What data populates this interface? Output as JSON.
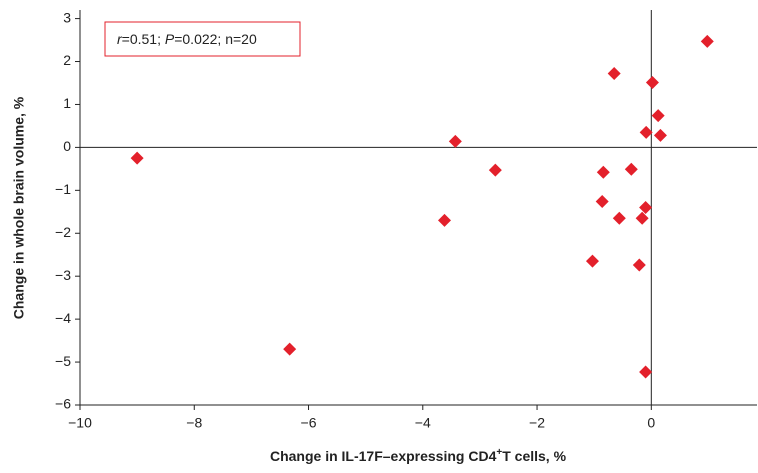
{
  "chart_data": {
    "type": "scatter",
    "annotation": [
      "r",
      "=0.51; ",
      "P",
      "=0.022; n=20"
    ],
    "x_label": [
      "Change in IL-17F–expressing CD4",
      "+",
      "T cells, %"
    ],
    "y_label": "Change in whole brain volume, %",
    "color": "#e3202b",
    "x": [
      -9.0,
      -6.33,
      -3.62,
      -3.43,
      -2.73,
      -1.03,
      -0.84,
      -0.86,
      -0.65,
      -0.56,
      -0.35,
      -0.21,
      -0.16,
      -0.1,
      -0.1,
      -0.09,
      0.02,
      0.12,
      0.16,
      0.98
    ],
    "values": [
      -0.25,
      -4.7,
      -1.7,
      0.14,
      -0.53,
      -2.65,
      -0.58,
      -1.26,
      1.72,
      -1.65,
      -0.51,
      -2.74,
      -1.65,
      -5.23,
      -1.4,
      0.35,
      1.51,
      0.74,
      0.28,
      2.47
    ],
    "xlim": [
      -10,
      1.85
    ],
    "ylim": [
      -6,
      3.2
    ],
    "xticks": [
      {
        "value": -10,
        "label": "−10"
      },
      {
        "value": -8,
        "label": "−8"
      },
      {
        "value": -6,
        "label": "−6"
      },
      {
        "value": -4,
        "label": "−4"
      },
      {
        "value": -2,
        "label": "−2"
      },
      0
    ],
    "yticks": [
      {
        "value": -6,
        "label": "−6"
      },
      {
        "value": -5,
        "label": "−5"
      },
      {
        "value": -4,
        "label": "−4"
      },
      {
        "value": -3,
        "label": "−3"
      },
      {
        "value": -2,
        "label": "−2"
      },
      {
        "value": -1,
        "label": "−1"
      },
      0,
      1,
      2,
      3
    ]
  }
}
